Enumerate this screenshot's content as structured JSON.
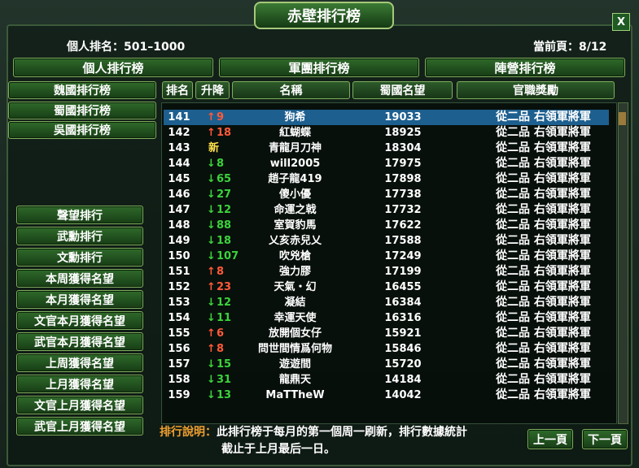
{
  "title": "赤壁排行榜",
  "close": "X",
  "personal_rank": "個人排名：501–1000",
  "current_page": "當前頁：8/12",
  "tabs": [
    "個人排行榜",
    "軍團排行榜",
    "陣營排行榜"
  ],
  "nations": [
    "魏國排行榜",
    "蜀國排行榜",
    "吳國排行榜"
  ],
  "categories": [
    "聲望排行",
    "武勳排行",
    "文勳排行",
    "本周獲得名望",
    "本月獲得名望",
    "文官本月獲得名望",
    "武官本月獲得名望",
    "上周獲得名望",
    "上月獲得名望",
    "文官上月獲得名望",
    "武官上月獲得名望"
  ],
  "table": {
    "headers": [
      "排名",
      "升降",
      "名稱",
      "蜀國名望",
      "官職獎勵"
    ],
    "rows": [
      {
        "rank": 141,
        "arrow": "↑",
        "change": 9,
        "name": "狗希",
        "score": 19033,
        "reward": "從二品 右領軍將軍"
      },
      {
        "rank": 142,
        "arrow": "↑",
        "change": 18,
        "name": "紅蝴蝶",
        "score": 18925,
        "reward": "從二品 右領軍將軍"
      },
      {
        "rank": 143,
        "change": "新",
        "name": "青龍月刀神",
        "score": 18304,
        "reward": "從二品 右領軍將軍"
      },
      {
        "rank": 144,
        "arrow": "↓",
        "change": 8,
        "name": "will2005",
        "score": 17975,
        "reward": "從二品 右領軍將軍"
      },
      {
        "rank": 145,
        "arrow": "↓",
        "change": 65,
        "name": "趙子龍419",
        "score": 17898,
        "reward": "從二品 右領軍將軍"
      },
      {
        "rank": 146,
        "arrow": "↓",
        "change": 27,
        "name": "傻小優",
        "score": 17738,
        "reward": "從二品 右領軍將軍"
      },
      {
        "rank": 147,
        "arrow": "↓",
        "change": 12,
        "name": "命運之戟",
        "score": 17732,
        "reward": "從二品 右領軍將軍"
      },
      {
        "rank": 148,
        "arrow": "↓",
        "change": 88,
        "name": "室賀豹馬",
        "score": 17622,
        "reward": "從二品 右領軍將軍"
      },
      {
        "rank": 149,
        "arrow": "↓",
        "change": 18,
        "name": "乂亥赤兒乂",
        "score": 17588,
        "reward": "從二品 右領軍將軍"
      },
      {
        "rank": 150,
        "arrow": "↓",
        "change": 107,
        "name": "吹兇槍",
        "score": 17249,
        "reward": "從二品 右領軍將軍"
      },
      {
        "rank": 151,
        "arrow": "↑",
        "change": 8,
        "name": "強力膠",
        "score": 17199,
        "reward": "從二品 右領軍將軍"
      },
      {
        "rank": 152,
        "arrow": "↑",
        "change": 23,
        "name": "天氣・幻",
        "score": 16455,
        "reward": "從二品 右領軍將軍"
      },
      {
        "rank": 153,
        "arrow": "↓",
        "change": 12,
        "name": "凝結",
        "score": 16384,
        "reward": "從二品 右領軍將軍"
      },
      {
        "rank": 154,
        "arrow": "↓",
        "change": 11,
        "name": "幸運天使",
        "score": 16316,
        "reward": "從二品 右領軍將軍"
      },
      {
        "rank": 155,
        "arrow": "↑",
        "change": 6,
        "name": "放開個女仔",
        "score": 15921,
        "reward": "從二品 右領軍將軍"
      },
      {
        "rank": 156,
        "arrow": "↑",
        "change": 8,
        "name": "問世間情爲何物",
        "score": 15846,
        "reward": "從二品 右領軍將軍"
      },
      {
        "rank": 157,
        "arrow": "↓",
        "change": 15,
        "name": "遊遊間",
        "score": 15720,
        "reward": "從二品 右領軍將軍"
      },
      {
        "rank": 158,
        "arrow": "↓",
        "change": 31,
        "name": "龍鼎天",
        "score": 14184,
        "reward": "從二品 右領軍將軍"
      },
      {
        "rank": 159,
        "arrow": "↓",
        "change": 13,
        "name": "MaTTheW",
        "score": 14042,
        "reward": "從二品 右領軍將軍"
      }
    ]
  },
  "footer": {
    "label": "排行說明：",
    "lines": [
      "此排行榜于每月的第一個周一刷新，排行數據統計",
      "截止于上月最后一日。"
    ]
  },
  "buttons": [
    "上一頁",
    "下一頁"
  ]
}
